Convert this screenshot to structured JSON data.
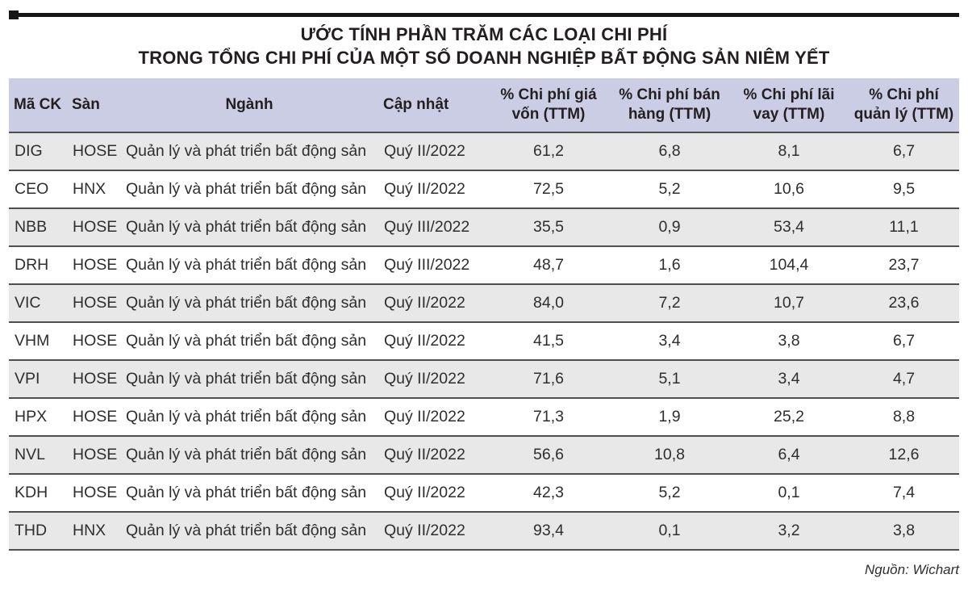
{
  "style": {
    "header_bg": "#cbcde5",
    "row_alt_bg": "#e8e8e8",
    "row_bg": "#ffffff",
    "row_border": "#4f4f4f",
    "rule_color": "#161616",
    "text_color": "#231f20"
  },
  "chart_data": {
    "type": "table",
    "title": "ƯỚC TÍNH PHẦN TRĂM CÁC LOẠI CHI PHÍ TRONG TỔNG CHI PHÍ CỦA MỘT SỐ DOANH NGHIỆP BẤT ĐỘNG SẢN NIÊM YẾT",
    "title_lines": [
      "ƯỚC TÍNH PHẦN TRĂM CÁC LOẠI CHI PHÍ",
      "TRONG TỔNG CHI PHÍ CỦA MỘT SỐ DOANH NGHIỆP BẤT ĐỘNG SẢN NIÊM YẾT"
    ],
    "columns": [
      "Mã CK",
      "Sàn",
      "Ngành",
      "Cập nhật",
      "% Chi phí giá vốn (TTM)",
      "% Chi phí bán hàng (TTM)",
      "% Chi phí lãi vay (TTM)",
      "% Chi phí quản lý (TTM)"
    ],
    "rows": [
      [
        "DIG",
        "HOSE",
        "Quản lý và phát triển bất động sản",
        "Quý II/2022",
        "61,2",
        "6,8",
        "8,1",
        "6,7"
      ],
      [
        "CEO",
        "HNX",
        "Quản lý và phát triển bất động sản",
        "Quý II/2022",
        "72,5",
        "5,2",
        "10,6",
        "9,5"
      ],
      [
        "NBB",
        "HOSE",
        "Quản lý và phát triển bất động sản",
        "Quý III/2022",
        "35,5",
        "0,9",
        "53,4",
        "11,1"
      ],
      [
        "DRH",
        "HOSE",
        "Quản lý và phát triển bất động sản",
        "Quý III/2022",
        "48,7",
        "1,6",
        "104,4",
        "23,7"
      ],
      [
        "VIC",
        "HOSE",
        "Quản lý và phát triển bất động sản",
        "Quý II/2022",
        "84,0",
        "7,2",
        "10,7",
        "23,6"
      ],
      [
        "VHM",
        "HOSE",
        "Quản lý và phát triển bất động sản",
        "Quý II/2022",
        "41,5",
        "3,4",
        "3,8",
        "6,7"
      ],
      [
        "VPI",
        "HOSE",
        "Quản lý và phát triển bất động sản",
        "Quý II/2022",
        "71,6",
        "5,1",
        "3,4",
        "4,7"
      ],
      [
        "HPX",
        "HOSE",
        "Quản lý và phát triển bất động sản",
        "Quý II/2022",
        "71,3",
        "1,9",
        "25,2",
        "8,8"
      ],
      [
        "NVL",
        "HOSE",
        "Quản lý và phát triển bất động sản",
        "Quý II/2022",
        "56,6",
        "10,8",
        "6,4",
        "12,6"
      ],
      [
        "KDH",
        "HOSE",
        "Quản lý và phát triển bất động sản",
        "Quý II/2022",
        "42,3",
        "5,2",
        "0,1",
        "7,4"
      ],
      [
        "THD",
        "HNX",
        "Quản lý và phát triển bất động sản",
        "Quý II/2022",
        "93,4",
        "0,1",
        "3,2",
        "3,8"
      ]
    ],
    "source": "Nguồn: Wichart"
  }
}
